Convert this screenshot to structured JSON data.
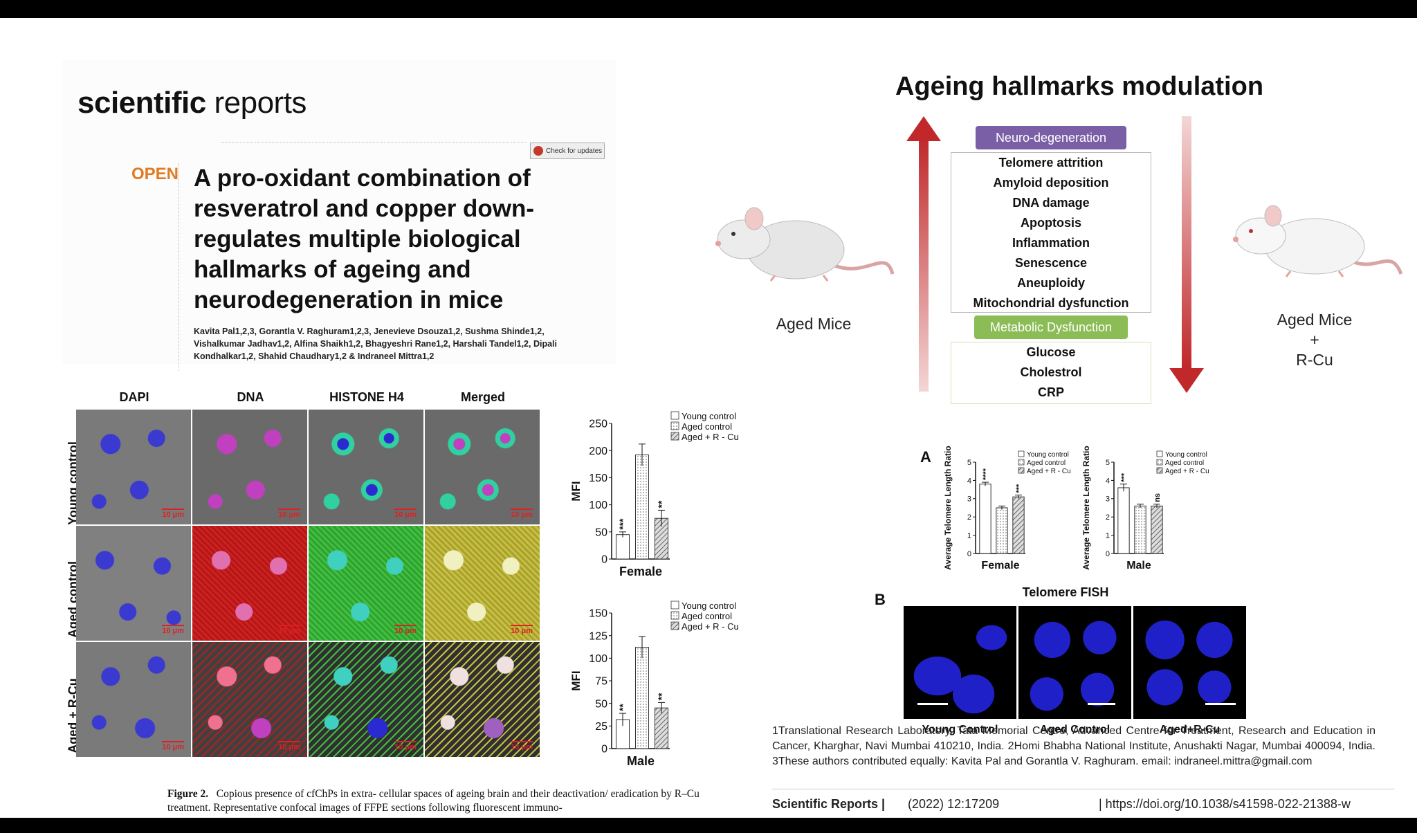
{
  "paper": {
    "journal_bold": "scientific",
    "journal_rest": " reports",
    "check_updates": "Check for updates",
    "open_label": "OPEN",
    "title": "A pro-oxidant combination of resveratrol and copper down-regulates multiple biological hallmarks of ageing and neurodegeneration in mice",
    "authors": "Kavita Pal1,2,3, Gorantla V. Raghuram1,2,3, Jenevieve Dsouza1,2, Sushma Shinde1,2, Vishalkumar Jadhav1,2, Alfina Shaikh1,2, Bhagyeshri Rane1,2, Harshali Tandel1,2, Dipali Kondhalkar1,2, Shahid Chaudhary1,2 & Indraneel Mittra1,2"
  },
  "figure2": {
    "columns": [
      "DAPI",
      "DNA",
      "HISTONE H4",
      "Merged"
    ],
    "rows": [
      "Young control",
      "Aged control",
      "Aged + R-Cu"
    ],
    "scale_bar": "10 μm",
    "caption_label": "Figure 2.",
    "caption_text": "Copious presence of cfChPs in extra- cellular spaces of ageing brain and their deactivation/ eradication by R–Cu treatment. Representative confocal images of FFPE sections following fluorescent immuno-"
  },
  "chart_data": [
    {
      "type": "bar",
      "title": "Female",
      "ylabel": "MFI",
      "ylim": [
        0,
        250
      ],
      "yticks": [
        0,
        50,
        100,
        150,
        200,
        250
      ],
      "categories": [
        "Young control",
        "Aged control",
        "Aged + R - Cu"
      ],
      "values": [
        45,
        192,
        75
      ],
      "errors": [
        5,
        20,
        15
      ],
      "significance": [
        "***",
        "",
        "**"
      ],
      "legend": [
        "Young control",
        "Aged control",
        "Aged + R - Cu"
      ]
    },
    {
      "type": "bar",
      "title": "Male",
      "ylabel": "MFI",
      "ylim": [
        0,
        150
      ],
      "yticks": [
        0,
        25,
        50,
        75,
        100,
        125,
        150
      ],
      "categories": [
        "Young control",
        "Aged control",
        "Aged + R - Cu"
      ],
      "values": [
        32,
        112,
        45
      ],
      "errors": [
        7,
        12,
        6
      ],
      "significance": [
        "**",
        "",
        "**"
      ],
      "legend": [
        "Young control",
        "Aged control",
        "Aged + R - Cu"
      ]
    },
    {
      "type": "bar",
      "title": "Female",
      "ylabel": "Average Telomere Length Ratio",
      "ylim": [
        0,
        5
      ],
      "yticks": [
        0,
        1,
        2,
        3,
        4,
        5
      ],
      "categories": [
        "Young control",
        "Aged control",
        "Aged + R - Cu"
      ],
      "values": [
        3.8,
        2.5,
        3.1
      ],
      "errors": [
        0.1,
        0.1,
        0.1
      ],
      "significance": [
        "****",
        "",
        "***"
      ],
      "legend": [
        "Young control",
        "Aged control",
        "Aged + R - Cu"
      ]
    },
    {
      "type": "bar",
      "title": "Male",
      "ylabel": "Average Telomere Length Ratio",
      "ylim": [
        0,
        5
      ],
      "yticks": [
        0,
        1,
        2,
        3,
        4,
        5
      ],
      "categories": [
        "Young control",
        "Aged control",
        "Aged + R - Cu"
      ],
      "values": [
        3.6,
        2.6,
        2.6
      ],
      "errors": [
        0.2,
        0.1,
        0.1
      ],
      "significance": [
        "***",
        "",
        "ns"
      ],
      "legend": [
        "Young control",
        "Aged control",
        "Aged + R - Cu"
      ]
    }
  ],
  "diagram": {
    "title": "Ageing hallmarks modulation",
    "neuro_label": "Neuro-degeneration",
    "neuro_items": [
      "Telomere attrition",
      "Amyloid deposition",
      "DNA damage",
      "Apoptosis",
      "Inflammation",
      "Senescence",
      "Aneuploidy",
      "Mitochondrial dysfunction"
    ],
    "metabolic_label": "Metabolic Dysfunction",
    "metabolic_items": [
      "Glucose",
      "Cholestrol",
      "CRP"
    ],
    "left_mouse_label": "Aged Mice",
    "right_mouse_label": [
      "Aged Mice",
      "+",
      "R-Cu"
    ],
    "neuro_color": "#7b5fa6",
    "metabolic_color": "#8cbc56",
    "arrow_color": "#c0282a"
  },
  "telomere": {
    "panel_a": "A",
    "panel_b": "B",
    "fish_title": "Telomere FISH",
    "fish_labels": [
      "Young Control",
      "Aged Control",
      "Aged+R-Cu"
    ]
  },
  "affiliations": "1Translational Research Laboratory, Tata Memorial Centre, Advanced Centre for Treatment, Research and Education in Cancer, Kharghar, Navi Mumbai 410210, India. 2Homi Bhabha National Institute, Anushakti Nagar, Mumbai 400094, India. 3These authors contributed equally: Kavita Pal and Gorantla V. Raghuram. email: indraneel.mittra@gmail.com",
  "footer": {
    "journal": "Scientific Reports |",
    "volume": "(2022) 12:17209",
    "doi": "| https://doi.org/10.1038/s41598-022-21388-w"
  }
}
